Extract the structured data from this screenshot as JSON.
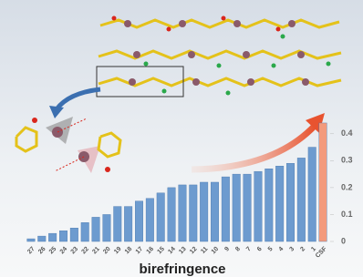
{
  "chart_data": {
    "type": "bar",
    "categories": [
      "27",
      "26",
      "25",
      "24",
      "23",
      "22",
      "21",
      "20",
      "19",
      "18",
      "17",
      "16",
      "15",
      "14",
      "13",
      "12",
      "11",
      "10",
      "9",
      "8",
      "7",
      "6",
      "5",
      "4",
      "3",
      "2",
      "1",
      "CSF"
    ],
    "values": [
      0.01,
      0.02,
      0.03,
      0.04,
      0.05,
      0.07,
      0.09,
      0.1,
      0.13,
      0.13,
      0.15,
      0.16,
      0.18,
      0.2,
      0.21,
      0.21,
      0.22,
      0.22,
      0.24,
      0.25,
      0.25,
      0.26,
      0.27,
      0.28,
      0.29,
      0.31,
      0.35,
      0.44
    ],
    "colors": [
      "#6d9bcf",
      "#6d9bcf",
      "#6d9bcf",
      "#6d9bcf",
      "#6d9bcf",
      "#6d9bcf",
      "#6d9bcf",
      "#6d9bcf",
      "#6d9bcf",
      "#6d9bcf",
      "#6d9bcf",
      "#6d9bcf",
      "#6d9bcf",
      "#6d9bcf",
      "#6d9bcf",
      "#6d9bcf",
      "#6d9bcf",
      "#6d9bcf",
      "#6d9bcf",
      "#6d9bcf",
      "#6d9bcf",
      "#6d9bcf",
      "#6d9bcf",
      "#6d9bcf",
      "#6d9bcf",
      "#6d9bcf",
      "#6d9bcf",
      "#f39a7c"
    ],
    "xlabel": "birefringence",
    "ylim": [
      0,
      0.45
    ],
    "yticks": [
      0,
      0.1,
      0.2,
      0.3,
      0.4
    ]
  }
}
